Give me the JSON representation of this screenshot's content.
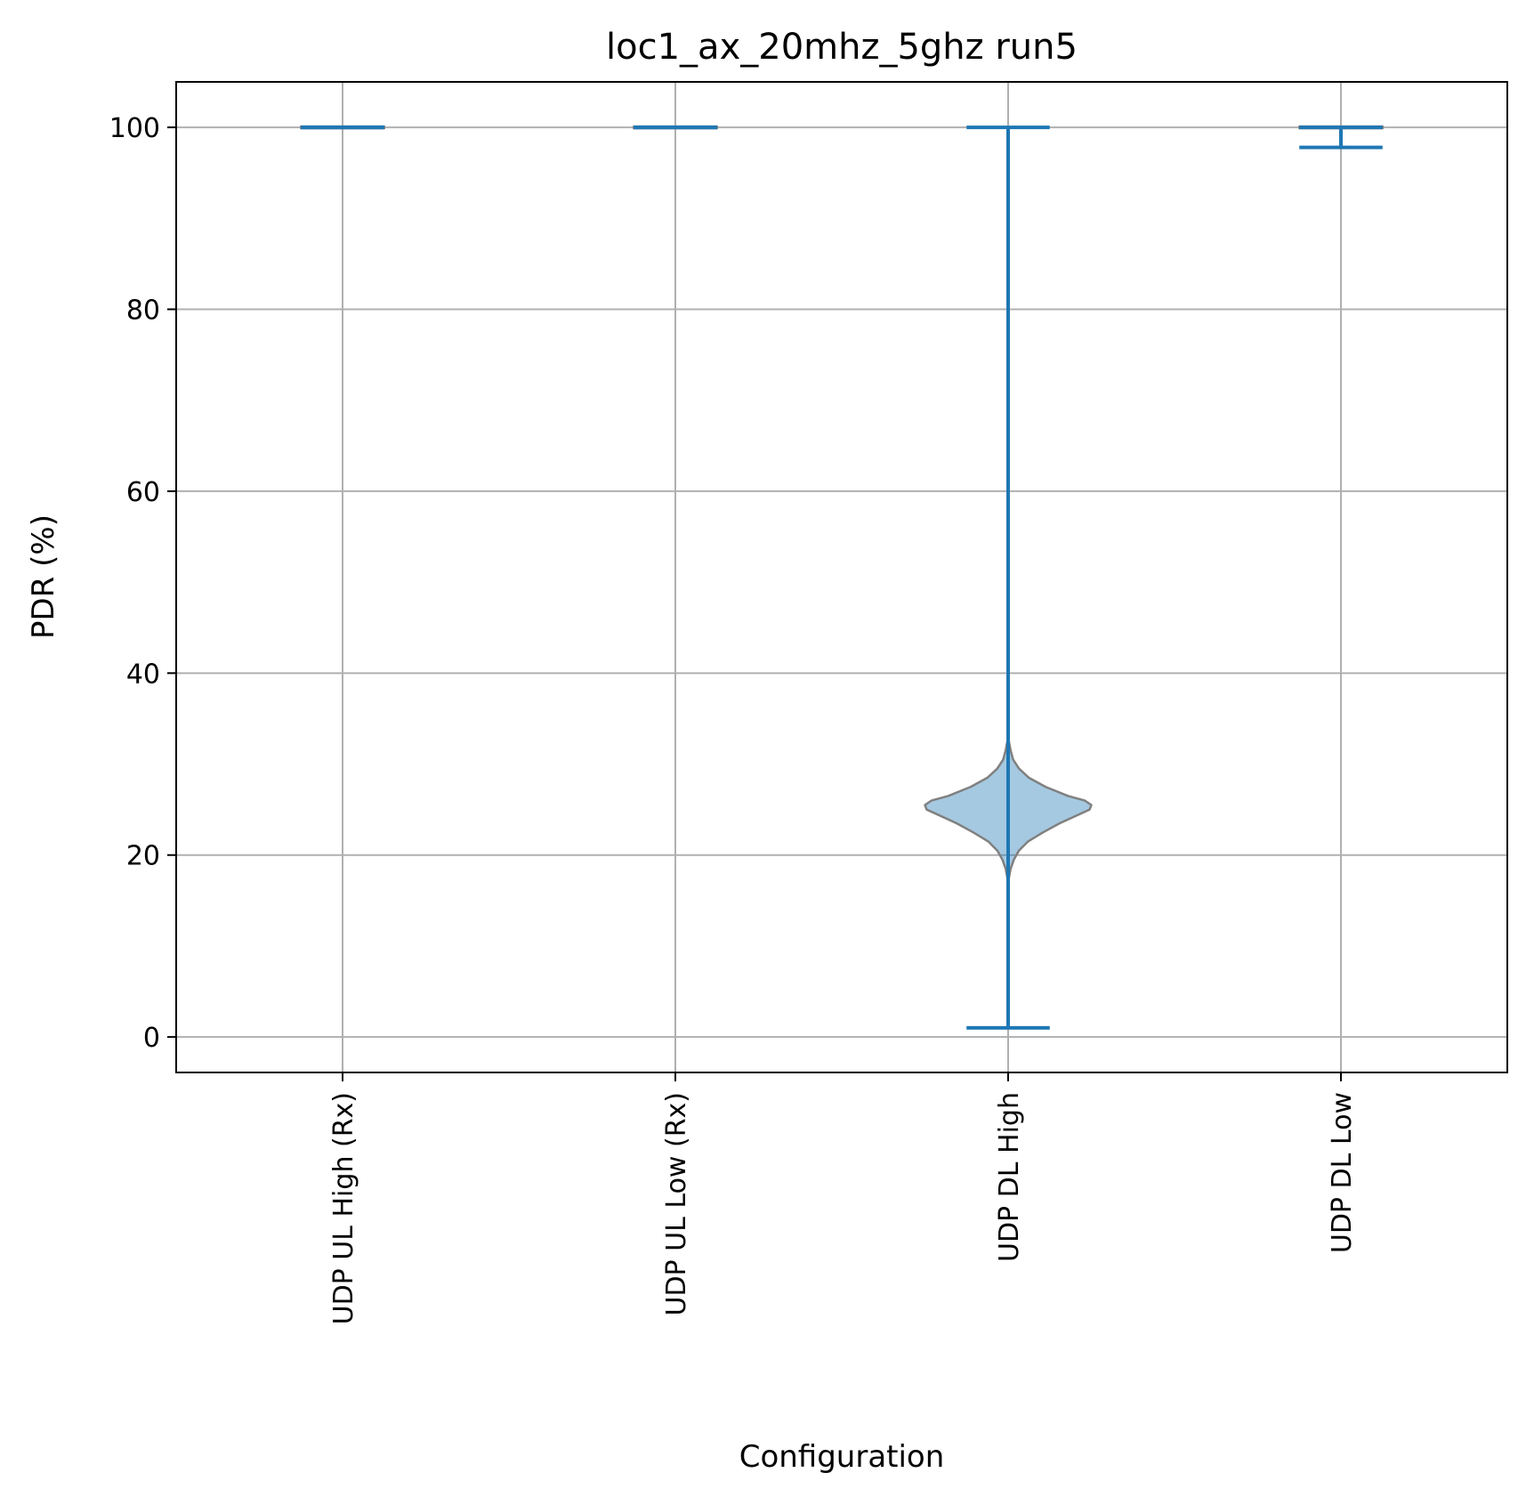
{
  "chart_data": {
    "type": "violin",
    "title": "loc1_ax_20mhz_5ghz run5",
    "xlabel": "Configuration",
    "ylabel": "PDR (%)",
    "ylim": [
      -3.9,
      105
    ],
    "yticks": [
      0,
      20,
      40,
      60,
      80,
      100
    ],
    "grid": true,
    "categories": [
      "UDP UL High (Rx)",
      "UDP UL Low (Rx)",
      "UDP DL High",
      "UDP DL Low"
    ],
    "series": [
      {
        "min": 100,
        "max": 100,
        "density": [
          [
            99.9,
            0.5
          ],
          [
            100,
            0.5
          ],
          [
            100.1,
            0.5
          ]
        ]
      },
      {
        "min": 100,
        "max": 100,
        "density": [
          [
            99.9,
            0.5
          ],
          [
            100,
            0.5
          ],
          [
            100.1,
            0.5
          ]
        ]
      },
      {
        "min": 1,
        "max": 100,
        "density": [
          [
            16,
            0.0
          ],
          [
            17.5,
            0.01
          ],
          [
            18.5,
            0.03
          ],
          [
            19.5,
            0.07
          ],
          [
            20.5,
            0.13
          ],
          [
            21.5,
            0.24
          ],
          [
            22.5,
            0.42
          ],
          [
            23.5,
            0.62
          ],
          [
            24.5,
            0.86
          ],
          [
            25.0,
            0.98
          ],
          [
            25.5,
            1.0
          ],
          [
            26.0,
            0.92
          ],
          [
            26.5,
            0.72
          ],
          [
            27.5,
            0.45
          ],
          [
            28.5,
            0.25
          ],
          [
            29.5,
            0.13
          ],
          [
            30.5,
            0.06
          ],
          [
            31.5,
            0.03
          ],
          [
            32.5,
            0.01
          ],
          [
            33.3,
            0.0
          ]
        ]
      },
      {
        "min": 97.8,
        "max": 100,
        "density": [
          [
            99.9,
            0.5
          ],
          [
            100,
            0.5
          ],
          [
            100.1,
            0.5
          ]
        ]
      }
    ],
    "colors": {
      "body": "#1f77b4",
      "edge": "#808080",
      "line": "#1f77b4"
    }
  }
}
